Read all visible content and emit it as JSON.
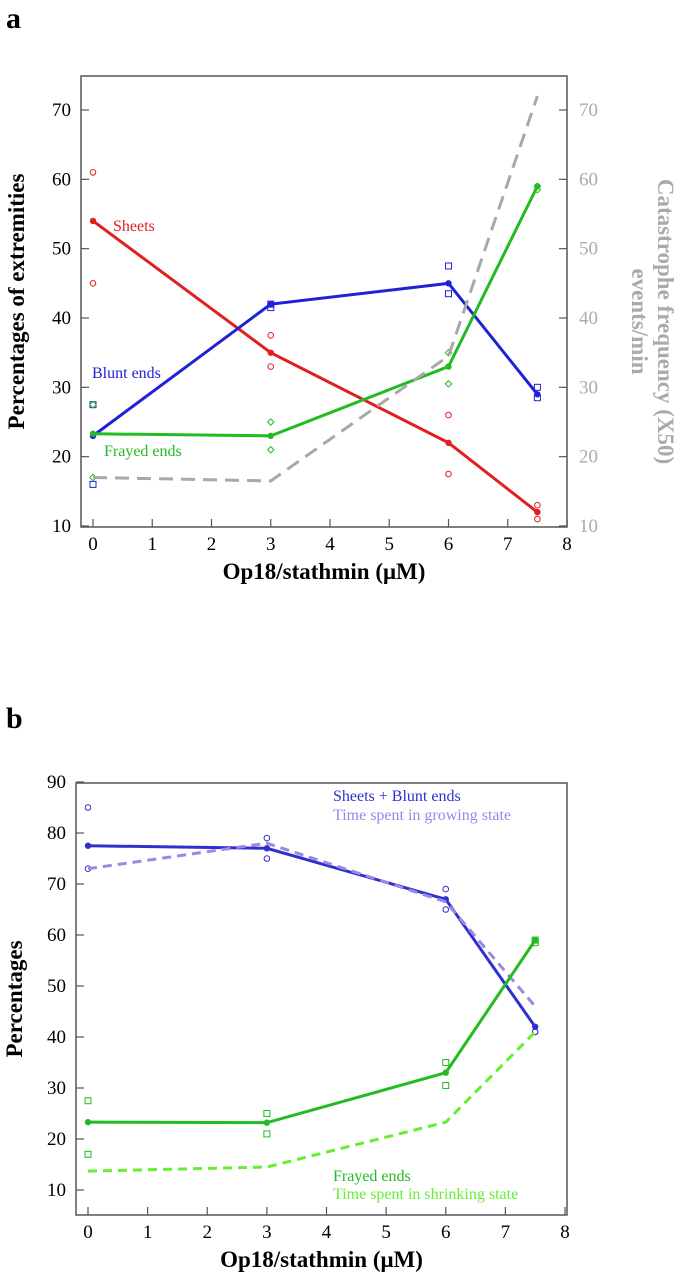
{
  "chart_data": [
    {
      "panel_label": "a",
      "type": "line",
      "xlabel": "Op18/stathmin (μM)",
      "ylabel": "Percentages of extremities",
      "y2label": [
        "Catastrophe frequency (X50)",
        "events/min"
      ],
      "xlim": [
        0,
        8
      ],
      "ylim": [
        10,
        70
      ],
      "y2lim": [
        10,
        70
      ],
      "xticks": [
        "0",
        "1",
        "2",
        "3",
        "4",
        "5",
        "6",
        "7",
        "8"
      ],
      "yticks": [
        "10",
        "20",
        "30",
        "40",
        "50",
        "60",
        "70"
      ],
      "y2ticks": [
        "10",
        "20",
        "30",
        "40",
        "50",
        "60",
        "70"
      ],
      "grid": false,
      "x": [
        0,
        3,
        6,
        7.5
      ],
      "series": [
        {
          "name": "Sheets",
          "color": "#e02020",
          "style": "solid",
          "marker": "circle",
          "values": [
            54,
            35,
            22,
            12
          ],
          "replicates": [
            [
              61,
              45
            ],
            [
              37.5,
              33
            ],
            [
              26,
              17.5
            ],
            [
              13,
              11
            ]
          ]
        },
        {
          "name": "Blunt ends",
          "color": "#2020d8",
          "style": "solid",
          "marker": "square",
          "values": [
            23,
            42,
            45,
            29
          ],
          "replicates": [
            [
              27.5,
              16
            ],
            [
              42,
              41.5
            ],
            [
              47.5,
              43.5
            ],
            [
              30,
              28.5
            ]
          ]
        },
        {
          "name": "Frayed ends",
          "color": "#22bb22",
          "style": "solid",
          "marker": "diamond",
          "values": [
            23.3,
            23,
            33,
            59
          ],
          "replicates": [
            [
              27.5,
              17
            ],
            [
              25,
              21
            ],
            [
              35,
              30.5
            ],
            [
              59,
              58.5
            ]
          ]
        },
        {
          "color": "#a8a8a8",
          "style": "dashed",
          "axis": "right",
          "values": [
            17,
            16.5,
            34.5,
            72
          ]
        }
      ]
    },
    {
      "panel_label": "b",
      "type": "line",
      "xlabel": "Op18/stathmin (μM)",
      "ylabel": "Percentages",
      "xlim": [
        0,
        8
      ],
      "ylim": [
        5,
        92
      ],
      "xticks": [
        "0",
        "1",
        "2",
        "3",
        "4",
        "5",
        "6",
        "7",
        "8"
      ],
      "yticks": [
        "10",
        "20",
        "30",
        "40",
        "50",
        "60",
        "70",
        "80",
        "90"
      ],
      "grid": false,
      "x": [
        0,
        3,
        6,
        7.5
      ],
      "series": [
        {
          "name": "Sheets + Blunt ends",
          "color": "#3030d0",
          "style": "solid",
          "marker": "circle",
          "values": [
            77.5,
            77,
            67,
            42
          ],
          "replicates": [
            [
              85,
              73
            ],
            [
              79,
              75
            ],
            [
              69,
              65
            ],
            [
              41,
              41
            ]
          ]
        },
        {
          "name": "Time spent in growing state",
          "color": "#9a88e8",
          "style": "dashed",
          "values": [
            73,
            78,
            66.5,
            46
          ]
        },
        {
          "name": "Frayed ends",
          "color": "#22bb22",
          "style": "solid",
          "marker": "square",
          "values": [
            23.3,
            23.2,
            33,
            59
          ],
          "replicates": [
            [
              27.5,
              17
            ],
            [
              25,
              21
            ],
            [
              35,
              30.5
            ],
            [
              59,
              58.5
            ]
          ]
        },
        {
          "name": "Time spent in shrinking state",
          "color": "#66ee33",
          "style": "dashed",
          "values": [
            13.7,
            14.5,
            23.3,
            41
          ]
        }
      ]
    }
  ]
}
